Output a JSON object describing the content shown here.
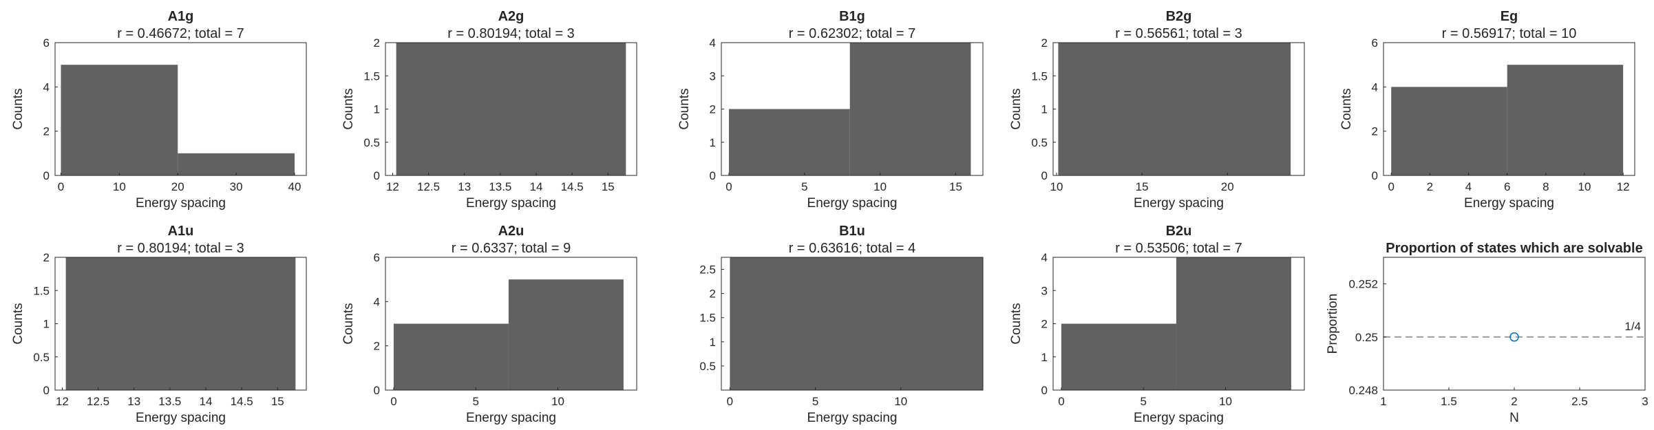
{
  "colors": {
    "bar": "#616161",
    "marker": "#0072BD",
    "refline": "#999999",
    "axis": "#262626"
  },
  "chart_data": [
    {
      "type": "bar",
      "title": "A1g",
      "subtitle": "r = 0.46672; total = 7",
      "xlabel": "Energy spacing",
      "ylabel": "Counts",
      "xlim": [
        -1,
        42
      ],
      "ylim": [
        0,
        6
      ],
      "xticks": [
        0,
        10,
        20,
        30,
        40
      ],
      "xticklabels": [
        "0",
        "10",
        "20",
        "30",
        "40"
      ],
      "yticks": [
        0,
        2,
        4,
        6
      ],
      "yticklabels": [
        "0",
        "2",
        "4",
        "6"
      ],
      "bins": [
        {
          "x0": 0,
          "x1": 20,
          "count": 5
        },
        {
          "x0": 20,
          "x1": 40,
          "count": 1
        }
      ]
    },
    {
      "type": "bar",
      "title": "A2g",
      "subtitle": "r = 0.80194; total = 3",
      "xlabel": "Energy spacing",
      "ylabel": "Counts",
      "xlim": [
        11.9,
        15.4
      ],
      "ylim": [
        0,
        2
      ],
      "xticks": [
        12,
        12.5,
        13,
        13.5,
        14,
        14.5,
        15
      ],
      "xticklabels": [
        "12",
        "12.5",
        "13",
        "13.5",
        "14",
        "14.5",
        "15"
      ],
      "yticks": [
        0,
        0.5,
        1,
        1.5,
        2
      ],
      "yticklabels": [
        "0",
        "0.5",
        "1",
        "1.5",
        "2"
      ],
      "bins": [
        {
          "x0": 12.05,
          "x1": 15.25,
          "count": 2
        }
      ]
    },
    {
      "type": "bar",
      "title": "B1g",
      "subtitle": "r = 0.62302; total = 7",
      "xlabel": "Energy spacing",
      "ylabel": "Counts",
      "xlim": [
        -0.5,
        16.8
      ],
      "ylim": [
        0,
        4
      ],
      "xticks": [
        0,
        5,
        10,
        15
      ],
      "xticklabels": [
        "0",
        "5",
        "10",
        "15"
      ],
      "yticks": [
        0,
        1,
        2,
        3,
        4
      ],
      "yticklabels": [
        "0",
        "1",
        "2",
        "3",
        "4"
      ],
      "bins": [
        {
          "x0": 0,
          "x1": 8,
          "count": 2
        },
        {
          "x0": 8,
          "x1": 16,
          "count": 4
        }
      ]
    },
    {
      "type": "bar",
      "title": "B2g",
      "subtitle": "r = 0.56561; total = 3",
      "xlabel": "Energy spacing",
      "ylabel": "Counts",
      "xlim": [
        9.8,
        24.5
      ],
      "ylim": [
        0,
        2
      ],
      "xticks": [
        10,
        15,
        20
      ],
      "xticklabels": [
        "10",
        "15",
        "20"
      ],
      "yticks": [
        0,
        0.5,
        1,
        1.5,
        2
      ],
      "yticklabels": [
        "0",
        "0.5",
        "1",
        "1.5",
        "2"
      ],
      "bins": [
        {
          "x0": 10.1,
          "x1": 23.7,
          "count": 2
        }
      ]
    },
    {
      "type": "bar",
      "title": "Eg",
      "subtitle": "r = 0.56917; total = 10",
      "xlabel": "Energy spacing",
      "ylabel": "Counts",
      "xlim": [
        -0.4,
        12.6
      ],
      "ylim": [
        0,
        6
      ],
      "xticks": [
        0,
        2,
        4,
        6,
        8,
        10,
        12
      ],
      "xticklabels": [
        "0",
        "2",
        "4",
        "6",
        "8",
        "10",
        "12"
      ],
      "yticks": [
        0,
        2,
        4,
        6
      ],
      "yticklabels": [
        "0",
        "2",
        "4",
        "6"
      ],
      "bins": [
        {
          "x0": 0,
          "x1": 6,
          "count": 4
        },
        {
          "x0": 6,
          "x1": 12,
          "count": 5
        }
      ]
    },
    {
      "type": "bar",
      "title": "A1u",
      "subtitle": "r = 0.80194; total = 3",
      "xlabel": "Energy spacing",
      "ylabel": "Counts",
      "xlim": [
        11.9,
        15.4
      ],
      "ylim": [
        0,
        2
      ],
      "xticks": [
        12,
        12.5,
        13,
        13.5,
        14,
        14.5,
        15
      ],
      "xticklabels": [
        "12",
        "12.5",
        "13",
        "13.5",
        "14",
        "14.5",
        "15"
      ],
      "yticks": [
        0,
        0.5,
        1,
        1.5,
        2
      ],
      "yticklabels": [
        "0",
        "0.5",
        "1",
        "1.5",
        "2"
      ],
      "bins": [
        {
          "x0": 12.05,
          "x1": 15.25,
          "count": 2
        }
      ]
    },
    {
      "type": "bar",
      "title": "A2u",
      "subtitle": "r = 0.6337; total = 9",
      "xlabel": "Energy spacing",
      "ylabel": "Counts",
      "xlim": [
        -0.5,
        14.8
      ],
      "ylim": [
        0,
        6
      ],
      "xticks": [
        0,
        5,
        10
      ],
      "xticklabels": [
        "0",
        "5",
        "10"
      ],
      "yticks": [
        0,
        2,
        4,
        6
      ],
      "yticklabels": [
        "0",
        "2",
        "4",
        "6"
      ],
      "bins": [
        {
          "x0": 0,
          "x1": 7,
          "count": 3
        },
        {
          "x0": 7,
          "x1": 14,
          "count": 5
        }
      ]
    },
    {
      "type": "bar",
      "title": "B1u",
      "subtitle": "r = 0.63616; total = 4",
      "xlabel": "Energy spacing",
      "ylabel": "",
      "xlim": [
        -0.5,
        14.8
      ],
      "ylim": [
        0,
        2.75
      ],
      "xticks": [
        0,
        5,
        10
      ],
      "xticklabels": [
        "0",
        "5",
        "10"
      ],
      "yticks": [
        0.5,
        1,
        1.5,
        2,
        2.5
      ],
      "yticklabels": [
        "0.5",
        "1",
        "1.5",
        "2",
        "2.5"
      ],
      "bins": [
        {
          "x0": 0,
          "x1": 14.8,
          "count": 2.75
        }
      ]
    },
    {
      "type": "bar",
      "title": "B2u",
      "subtitle": "r = 0.53506; total = 7",
      "xlabel": "Energy spacing",
      "ylabel": "Counts",
      "xlim": [
        -0.5,
        14.8
      ],
      "ylim": [
        0,
        4
      ],
      "xticks": [
        0,
        5,
        10
      ],
      "xticklabels": [
        "0",
        "5",
        "10"
      ],
      "yticks": [
        0,
        1,
        2,
        3,
        4
      ],
      "yticklabels": [
        "0",
        "1",
        "2",
        "3",
        "4"
      ],
      "bins": [
        {
          "x0": 0,
          "x1": 7,
          "count": 2
        },
        {
          "x0": 7,
          "x1": 14,
          "count": 4
        }
      ]
    },
    {
      "type": "scatter",
      "title": "Proportion of states which are solvable",
      "subtitle": "",
      "xlabel": "N",
      "ylabel": "Proportion",
      "xlim": [
        1,
        3
      ],
      "ylim": [
        0.248,
        0.253
      ],
      "xticks": [
        1,
        1.5,
        2,
        2.5,
        3
      ],
      "xticklabels": [
        "1",
        "1.5",
        "2",
        "2.5",
        "3"
      ],
      "yticks": [
        0.248,
        0.25,
        0.252
      ],
      "yticklabels": [
        "0.248",
        "0.25",
        "0.252"
      ],
      "points": [
        {
          "x": 2,
          "y": 0.25
        }
      ],
      "reference_line": {
        "y": 0.25,
        "label": "1/4",
        "style": "dashed"
      }
    }
  ]
}
